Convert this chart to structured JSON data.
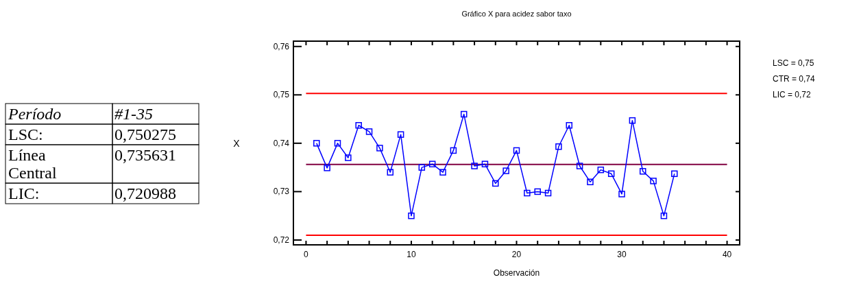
{
  "chart_data": {
    "type": "line",
    "title": "Gráfico X para acidez sabor taxo",
    "xlabel": "Observación",
    "ylabel": "X",
    "x": [
      1,
      2,
      3,
      4,
      5,
      6,
      7,
      8,
      9,
      10,
      11,
      12,
      13,
      14,
      15,
      16,
      17,
      18,
      19,
      20,
      21,
      22,
      23,
      24,
      25,
      26,
      27,
      28,
      29,
      30,
      31,
      32,
      33,
      34,
      35
    ],
    "series": [
      {
        "color": "#0000ff",
        "values": [
          0.74,
          0.7349,
          0.74,
          0.737,
          0.7437,
          0.7424,
          0.739,
          0.734,
          0.7418,
          0.725,
          0.735,
          0.7357,
          0.734,
          0.7385,
          0.746,
          0.7353,
          0.7357,
          0.7317,
          0.7343,
          0.7385,
          0.7297,
          0.73,
          0.7297,
          0.7393,
          0.7437,
          0.7353,
          0.732,
          0.7345,
          0.7337,
          0.7295,
          0.7447,
          0.7342,
          0.7322,
          0.725,
          0.7337
        ]
      }
    ],
    "xlim": [
      -1.2,
      41.2
    ],
    "ylim": [
      0.719,
      0.7611
    ],
    "xticks": [
      0,
      {
        "value": 2,
        "label": null
      },
      {
        "value": 4,
        "label": null
      },
      {
        "value": 6,
        "label": null
      },
      {
        "value": 8,
        "label": null
      },
      10,
      {
        "value": 12,
        "label": null
      },
      {
        "value": 14,
        "label": null
      },
      {
        "value": 16,
        "label": null
      },
      {
        "value": 18,
        "label": null
      },
      20,
      {
        "value": 22,
        "label": null
      },
      {
        "value": 24,
        "label": null
      },
      {
        "value": 26,
        "label": null
      },
      {
        "value": 28,
        "label": null
      },
      30,
      {
        "value": 32,
        "label": null
      },
      {
        "value": 34,
        "label": null
      },
      {
        "value": 36,
        "label": null
      },
      {
        "value": 38,
        "label": null
      },
      40
    ],
    "yticks": [
      {
        "value": 0.72,
        "label": "0,72"
      },
      {
        "value": 0.73,
        "label": "0,73"
      },
      {
        "value": 0.74,
        "label": "0,74"
      },
      {
        "value": 0.75,
        "label": "0,75"
      },
      {
        "value": 0.76,
        "label": "0,76"
      }
    ],
    "ref_lines": [
      {
        "axis": "y",
        "value": 0.750275,
        "color": "#ff0000"
      },
      {
        "axis": "y",
        "value": 0.735631,
        "color": "#800040"
      },
      {
        "axis": "y",
        "value": 0.720988,
        "color": "#ff0000"
      }
    ],
    "annotations": [
      "Período",
      "#1-35",
      "LSC:",
      "0,750275",
      "Línea Central",
      "0,735631",
      "LIC:",
      "0,720988",
      "LSC = 0,75",
      "CTR = 0,74",
      "LIC = 0,72"
    ],
    "marker": "square",
    "line_style": "solid",
    "grid": false
  }
}
